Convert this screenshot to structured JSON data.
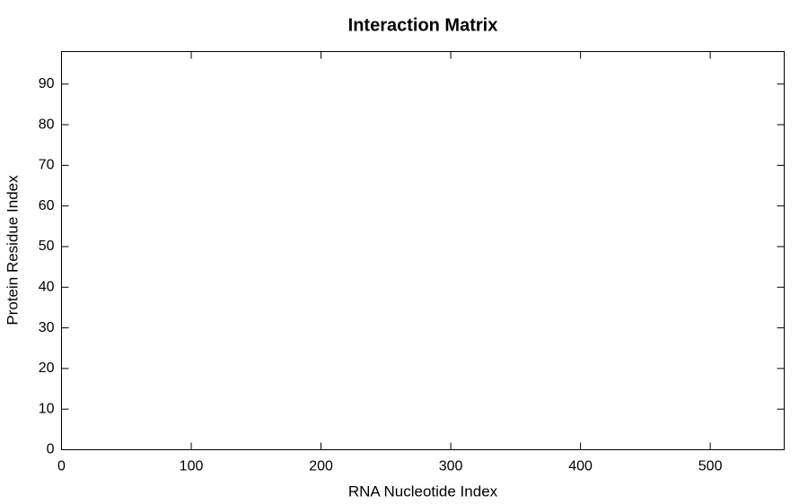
{
  "chart_data": {
    "type": "heatmap",
    "title": "Interaction Matrix",
    "x_label": "RNA Nucleotide Index",
    "y_label": "Protein Residue Index",
    "xlim": [
      0,
      557
    ],
    "xticks": [
      0,
      100,
      200,
      300,
      400,
      500
    ],
    "ylim": [
      0,
      98
    ],
    "yticks": [
      0,
      10,
      20,
      30,
      40,
      50,
      60,
      70,
      80,
      90
    ]
  }
}
